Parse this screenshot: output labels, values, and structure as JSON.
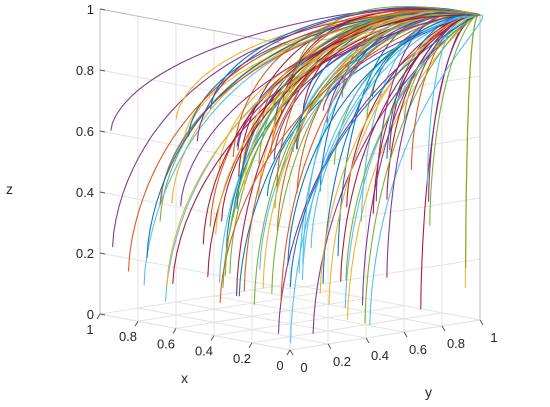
{
  "chart_data": {
    "type": "line",
    "projection": "3d",
    "xlabel": "x",
    "ylabel": "y",
    "zlabel": "z",
    "xlim": [
      0,
      1
    ],
    "ylim": [
      0,
      1
    ],
    "zlim": [
      0,
      1
    ],
    "x_ticks": [
      "0",
      "0.2",
      "0.4",
      "0.6",
      "0.8",
      "1"
    ],
    "y_ticks": [
      "0",
      "0.2",
      "0.4",
      "0.6",
      "0.8",
      "1"
    ],
    "z_ticks": [
      "0",
      "0.2",
      "0.4",
      "0.6",
      "0.8",
      "1"
    ],
    "grid": true,
    "trajectory_count": 110,
    "common_endpoint": [
      0,
      1,
      1
    ],
    "colors": [
      "#0072BD",
      "#D95319",
      "#EDB120",
      "#7E2F8E",
      "#77AC30",
      "#4DBEEE",
      "#A2142F"
    ]
  }
}
